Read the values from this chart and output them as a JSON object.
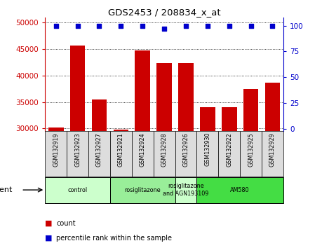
{
  "title": "GDS2453 / 208834_x_at",
  "samples": [
    "GSM132919",
    "GSM132923",
    "GSM132927",
    "GSM132921",
    "GSM132924",
    "GSM132928",
    "GSM132926",
    "GSM132930",
    "GSM132922",
    "GSM132925",
    "GSM132929"
  ],
  "counts": [
    30200,
    45700,
    35500,
    29800,
    44800,
    42400,
    42400,
    34000,
    34000,
    37400,
    38700
  ],
  "percentiles": [
    100,
    100,
    100,
    100,
    100,
    97,
    100,
    100,
    100,
    100,
    100
  ],
  "bar_color": "#cc0000",
  "dot_color": "#0000cc",
  "ylim_left": [
    29500,
    51000
  ],
  "ylim_right": [
    -2,
    108
  ],
  "yticks_left": [
    30000,
    35000,
    40000,
    45000,
    50000
  ],
  "yticks_right": [
    0,
    25,
    50,
    75,
    100
  ],
  "groups": [
    {
      "label": "control",
      "start": 0,
      "end": 2,
      "color": "#ccffcc"
    },
    {
      "label": "rosiglitazone",
      "start": 3,
      "end": 5,
      "color": "#99ee99"
    },
    {
      "label": "rosiglitazone\nand AGN193109",
      "start": 6,
      "end": 6,
      "color": "#ccffcc"
    },
    {
      "label": "AM580",
      "start": 7,
      "end": 10,
      "color": "#44dd44"
    }
  ],
  "agent_label": "agent",
  "bar_color_hex": "#cc0000",
  "dot_color_hex": "#0000cc",
  "xlabel_color": "#cc0000",
  "right_axis_color": "#0000cc",
  "tick_bg_color": "#dddddd"
}
